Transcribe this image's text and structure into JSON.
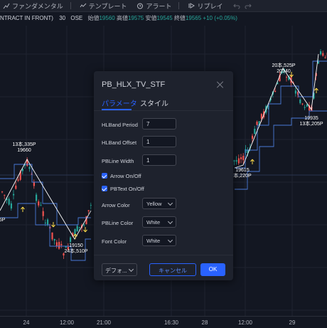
{
  "toolbar": {
    "fundamentals": "ファンダメンタル",
    "template": "テンプレート",
    "alert": "アラート",
    "replay": "リプレイ"
  },
  "legend": {
    "symbol": "NTRACT IN FRONT)",
    "interval": "30",
    "exchange": "OSE",
    "open_label": "始値",
    "open": "19560",
    "high_label": "高値",
    "high": "19575",
    "low_label": "安値",
    "low": "19545",
    "close_label": "終値",
    "close": "19565",
    "change": "+10 (+0.05%)"
  },
  "colors": {
    "background": "#131722",
    "up": "#26a69a",
    "down": "#ef5350",
    "accent": "#2962ff",
    "arrow": "#f5d547"
  },
  "annotations": [
    {
      "top": "13本,335P",
      "bottom": "19660"
    },
    {
      "top": "",
      "bottom": "5P"
    },
    {
      "top": "19150",
      "bottom": "24本,510P"
    },
    {
      "top": "19615",
      "bottom": "本,220P"
    },
    {
      "top": "20本,525P",
      "bottom": "20140"
    },
    {
      "top": "19935",
      "bottom": "13本,205P"
    }
  ],
  "xaxis": [
    "24",
    "12:00",
    "21:00",
    "16:30",
    "28",
    "12:00",
    "29"
  ],
  "dialog": {
    "title": "PB_HLX_TV_STF",
    "tab_params": "パラメータ",
    "tab_style": "スタイル",
    "hlband_period_label": "HLBand Period",
    "hlband_period_value": "7",
    "hlband_offset_label": "HLBand Offset",
    "hlband_offset_value": "1",
    "pbline_width_label": "PBLine Width",
    "pbline_width_value": "1",
    "arrow_onoff_label": "Arrow On/Off",
    "pbtext_onoff_label": "PBText On/Off",
    "arrow_color_label": "Arrow Color",
    "arrow_color_value": "Yellow",
    "pbline_color_label": "PBLine Color",
    "pbline_color_value": "White",
    "font_color_label": "Font Color",
    "font_color_value": "White",
    "default_button": "デフォ...",
    "cancel_button": "キャンセル",
    "ok_button": "OK"
  }
}
